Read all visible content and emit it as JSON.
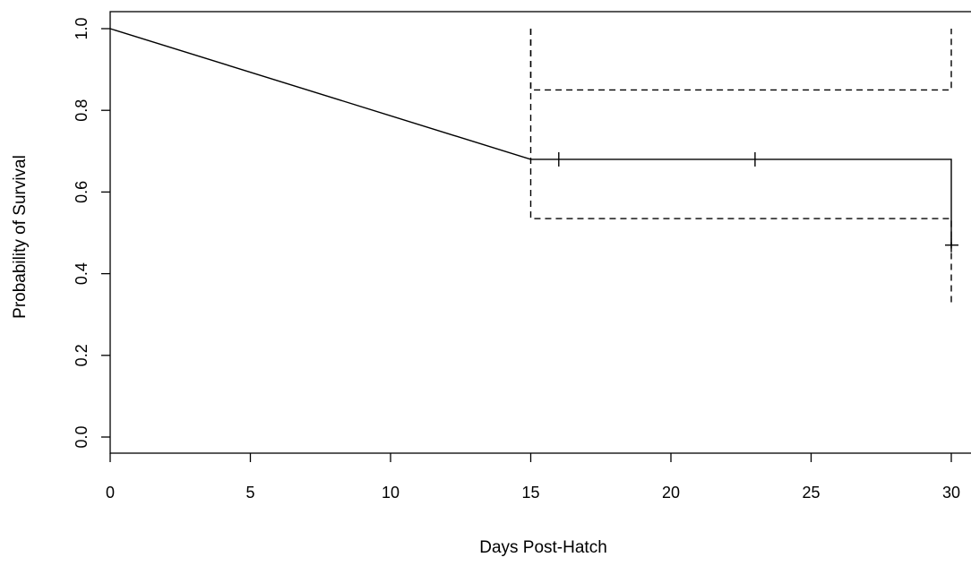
{
  "chart_data": {
    "type": "line",
    "title": "",
    "xlabel": "Days Post-Hatch",
    "ylabel": "Probability of Survival",
    "xlim": [
      0,
      30
    ],
    "ylim": [
      0,
      1
    ],
    "x_ticks": [
      0,
      5,
      10,
      15,
      20,
      25,
      30
    ],
    "y_ticks": [
      0.0,
      0.2,
      0.4,
      0.6,
      0.8,
      1.0
    ],
    "x_tick_labels": [
      "0",
      "5",
      "10",
      "15",
      "20",
      "25",
      "30"
    ],
    "y_tick_labels": [
      "0.0",
      "0.2",
      "0.4",
      "0.6",
      "0.8",
      "1.0"
    ],
    "grid": false,
    "series": [
      {
        "style": "solid",
        "x": [
          0,
          15,
          30,
          30
        ],
        "y": [
          1.0,
          0.68,
          0.68,
          0.47
        ]
      },
      {
        "style": "dashed",
        "x": [
          15,
          15,
          30,
          30
        ],
        "y": [
          1.0,
          0.85,
          0.85,
          1.0
        ]
      },
      {
        "style": "dashed",
        "x": [
          15,
          15,
          30,
          30
        ],
        "y": [
          1.0,
          0.535,
          0.535,
          0.33
        ]
      }
    ],
    "censor_marks": [
      {
        "x": 16,
        "y": 0.68
      },
      {
        "x": 23,
        "y": 0.68
      },
      {
        "x": 30,
        "y": 0.47
      }
    ],
    "colors": {
      "line": "#000000",
      "background": "#ffffff"
    }
  }
}
